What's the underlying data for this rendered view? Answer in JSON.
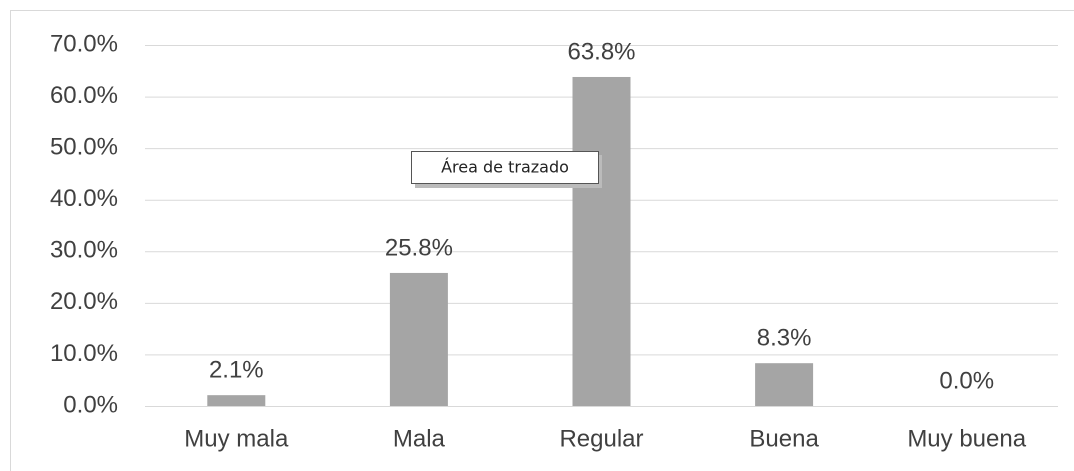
{
  "chart_data": {
    "type": "bar",
    "categories": [
      "Muy mala",
      "Mala",
      "Regular",
      "Buena",
      "Muy buena"
    ],
    "values": [
      2.1,
      25.8,
      63.8,
      8.3,
      0.0
    ],
    "value_labels": [
      "2.1%",
      "25.8%",
      "63.8%",
      "8.3%",
      "0.0%"
    ],
    "color": "#a5a5a5",
    "ylim": [
      0,
      70
    ],
    "yticks": [
      {
        "value": 0,
        "label": "0.0%"
      },
      {
        "value": 10,
        "label": "10.0%"
      },
      {
        "value": 20,
        "label": "20.0%"
      },
      {
        "value": 30,
        "label": "30.0%"
      },
      {
        "value": 40,
        "label": "40.0%"
      },
      {
        "value": 50,
        "label": "50.0%"
      },
      {
        "value": 60,
        "label": "60.0%"
      },
      {
        "value": 70,
        "label": "70.0%"
      }
    ],
    "grid": true,
    "tooltip": "Área de trazado"
  }
}
